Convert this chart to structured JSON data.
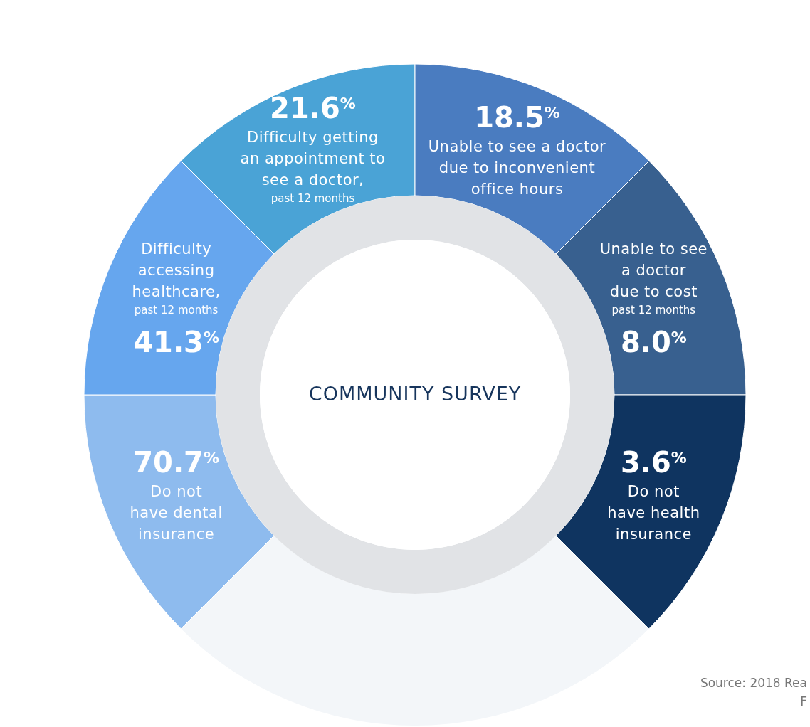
{
  "chart_data": {
    "type": "other",
    "title": "COMMUNITY SURVEY",
    "categories": [
      "Difficulty getting\nan appointment to\nsee a doctor,\n\npast 12 months",
      "Unable to see a doctor\ndue to inconvenient\noffice hours",
      "Unable to see\na doctor\ndue to cost\n\npast 12 months",
      "Do not\nhave health\ninsurance",
      "Do not\nhave dental\ninsurance",
      "Difficulty\naccessing\nhealthcare,\n\npast 12 months"
    ],
    "values": [
      21.6,
      18.5,
      8.0,
      3.6,
      70.7,
      41.3
    ],
    "value_labels": [
      "21.6$^{%}$",
      "18.5$^{%}$",
      "8.0$^{%}$",
      "3.6$^{%}$",
      "70.7$^{%}$",
      "41.3$^{%}$"
    ],
    "colors": [
      "#4aa3d6",
      "#4a7cc0",
      "#38608f",
      "#0f3460",
      "#8ebbee",
      "#66a6ee"
    ],
    "annotations": [
      "Source: 2018 Rea",
      "F"
    ]
  }
}
